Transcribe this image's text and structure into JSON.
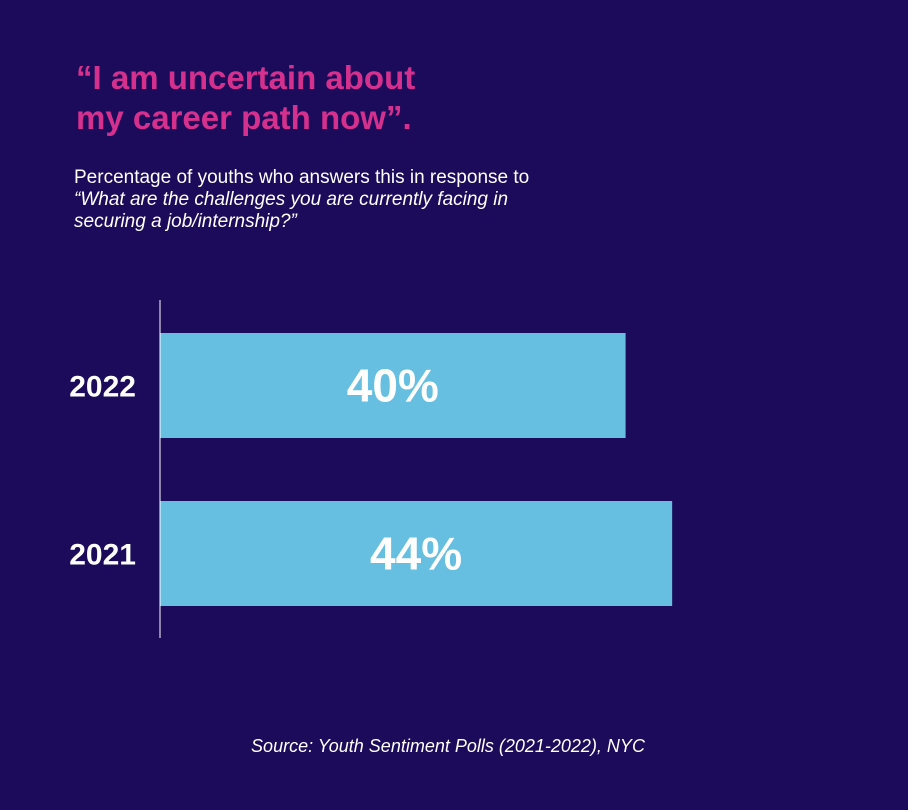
{
  "chart_data": {
    "type": "bar",
    "orientation": "horizontal",
    "title": [
      "“I am uncertain about",
      "my career path now”."
    ],
    "subtitle": {
      "line1": "Percentage of youths who answers this in response to",
      "line2": "“What are the challenges you are currently facing in",
      "line3": "securing a job/internship?”"
    },
    "categories": [
      "2022",
      "2021"
    ],
    "values": [
      40,
      44
    ],
    "value_labels": [
      "40%",
      "44%"
    ],
    "unit": "%",
    "xlim": [
      0,
      50
    ],
    "grid": false,
    "legend": "none",
    "source": "Source: Youth Sentiment Polls (2021-2022), NYC"
  },
  "colors": {
    "background": "#1b0b5a",
    "title": "#d6308f",
    "bar": "#66bfe0",
    "text": "#ffffff",
    "axis": "#ffffff"
  }
}
